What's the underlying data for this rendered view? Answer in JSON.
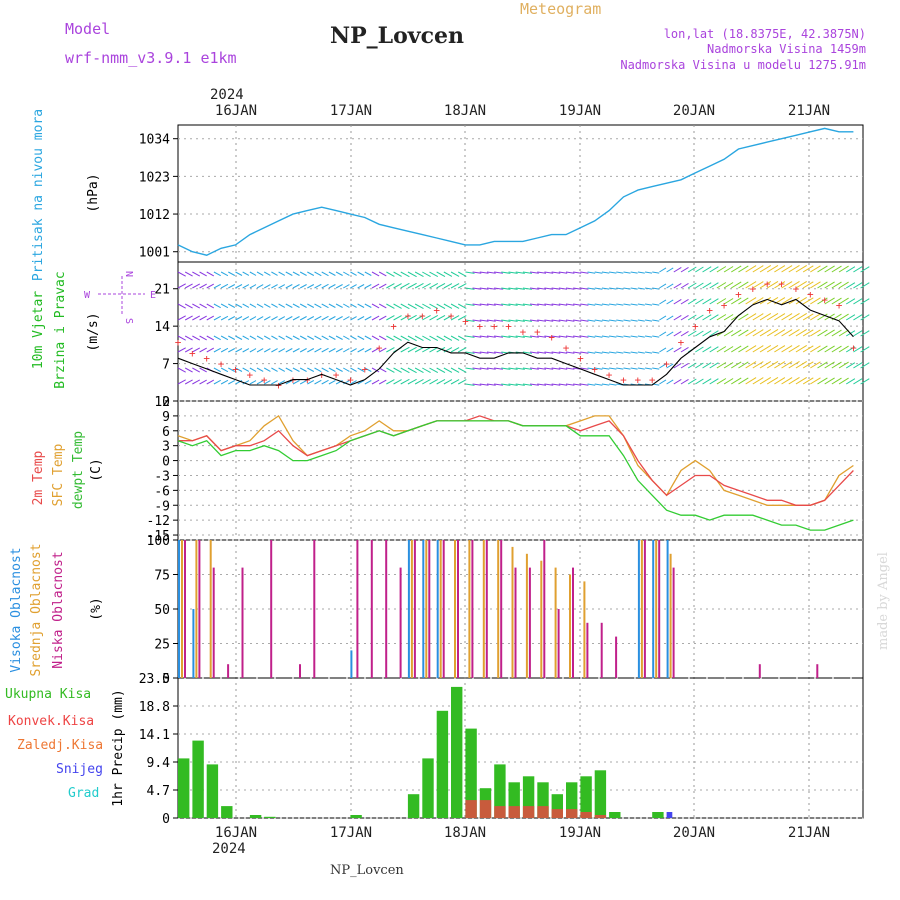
{
  "header": {
    "model_label": "Model",
    "model_name": "wrf-nmm_v3.9.1 e1km",
    "station_title": "NP_Lovcen",
    "meteogram_label": "Meteogram",
    "lonlat": "lon,lat (18.8375E, 42.3875N)",
    "altitude": "Nadmorska Visina 1459m",
    "model_altitude": "Nadmorska Visina u modelu 1275.91m",
    "year_top": "2024",
    "year_bottom": "2024",
    "footer_station": "NP_Lovcen",
    "watermark": "made by Angel"
  },
  "colors": {
    "pressure": "#2aa6e0",
    "wind_label": "#22bb22",
    "temp2m": "#e84a4a",
    "sfc_temp": "#e0a030",
    "dewpt": "#33cc33",
    "high_cloud": "#2a8fe0",
    "mid_cloud": "#e0a030",
    "low_cloud": "#c0208a",
    "precip_total": "#33bb22",
    "precip_conv": "#ee4444",
    "freezing": "#ee7733",
    "snow": "#4444ee",
    "hail": "#22cccc",
    "compass": "#aa44dd"
  },
  "chart_data": [
    {
      "type": "line",
      "id": "pressure",
      "ylabel_1": "Pritisak na nivou mora",
      "ylabel_2": "(hPa)",
      "x_categories": [
        "16JAN",
        "17JAN",
        "18JAN",
        "19JAN",
        "20JAN",
        "21JAN"
      ],
      "yticks": [
        1001,
        1012,
        1023,
        1034
      ],
      "ylim": [
        998,
        1038
      ],
      "x": [
        0,
        3,
        6,
        9,
        12,
        15,
        18,
        21,
        24,
        27,
        30,
        33,
        36,
        39,
        42,
        45,
        48,
        51,
        54,
        57,
        60,
        63,
        66,
        69,
        72,
        75,
        78,
        81,
        84,
        87,
        90,
        93,
        96,
        99,
        102,
        105,
        108,
        111,
        114,
        117,
        120,
        123,
        126,
        129,
        132,
        135,
        138,
        141
      ],
      "values": [
        1003,
        1001,
        1000,
        1002,
        1003,
        1006,
        1008,
        1010,
        1012,
        1013,
        1014,
        1013,
        1012,
        1011,
        1009,
        1008,
        1007,
        1006,
        1005,
        1004,
        1003,
        1003,
        1004,
        1004,
        1004,
        1005,
        1006,
        1006,
        1008,
        1010,
        1013,
        1017,
        1019,
        1020,
        1021,
        1022,
        1024,
        1026,
        1028,
        1031,
        1032,
        1033,
        1034,
        1035,
        1036,
        1037,
        1036,
        1036
      ],
      "grid": true
    },
    {
      "type": "line",
      "id": "wind",
      "ylabel_1": "10m Vjetar",
      "ylabel_2": "Brzina i Pravac",
      "ylabel_3": "(m/s)",
      "compass_labels": [
        "N",
        "S",
        "E",
        "W"
      ],
      "yticks": [
        0,
        7,
        14,
        21
      ],
      "ylim": [
        0,
        26
      ],
      "x": [
        0,
        3,
        6,
        9,
        12,
        15,
        18,
        21,
        24,
        27,
        30,
        33,
        36,
        39,
        42,
        45,
        48,
        51,
        54,
        57,
        60,
        63,
        66,
        69,
        72,
        75,
        78,
        81,
        84,
        87,
        90,
        93,
        96,
        99,
        102,
        105,
        108,
        111,
        114,
        117,
        120,
        123,
        126,
        129,
        132,
        135,
        138,
        141
      ],
      "series": [
        {
          "key": "speed",
          "values": [
            8,
            7,
            6,
            5,
            4,
            3,
            3,
            3,
            4,
            4,
            5,
            4,
            3,
            4,
            6,
            9,
            11,
            10,
            10,
            9,
            9,
            8,
            8,
            9,
            9,
            8,
            8,
            7,
            6,
            5,
            4,
            3,
            3,
            3,
            5,
            8,
            10,
            12,
            13,
            16,
            18,
            19,
            18,
            19,
            17,
            16,
            15,
            12
          ]
        },
        {
          "key": "gust",
          "values": [
            11,
            9,
            8,
            7,
            6,
            5,
            4,
            3,
            4,
            4,
            5,
            5,
            4,
            6,
            10,
            14,
            16,
            16,
            17,
            16,
            15,
            14,
            14,
            14,
            13,
            13,
            12,
            10,
            8,
            6,
            5,
            4,
            4,
            4,
            7,
            11,
            14,
            17,
            18,
            20,
            21,
            22,
            22,
            21,
            20,
            19,
            18,
            10
          ]
        }
      ],
      "grid": true
    },
    {
      "type": "line",
      "id": "temperature",
      "ylabel_1": "2m Temp",
      "ylabel_2": "SFC Temp",
      "ylabel_3": "dewpt Temp",
      "ylabel_4": "(C)",
      "yticks": [
        -15,
        -12,
        -9,
        -6,
        -3,
        0,
        3,
        6,
        9,
        12
      ],
      "ylim": [
        -16,
        12
      ],
      "x": [
        0,
        3,
        6,
        9,
        12,
        15,
        18,
        21,
        24,
        27,
        30,
        33,
        36,
        39,
        42,
        45,
        48,
        51,
        54,
        57,
        60,
        63,
        66,
        69,
        72,
        75,
        78,
        81,
        84,
        87,
        90,
        93,
        96,
        99,
        102,
        105,
        108,
        111,
        114,
        117,
        120,
        123,
        126,
        129,
        132,
        135,
        138,
        141
      ],
      "series": [
        {
          "key": "temp2m",
          "values": [
            4,
            4,
            5,
            2,
            3,
            3,
            4,
            6,
            3,
            1,
            2,
            3,
            4,
            5,
            6,
            5,
            6,
            7,
            8,
            8,
            8,
            9,
            8,
            8,
            7,
            7,
            7,
            7,
            6,
            7,
            8,
            5,
            0,
            -4,
            -7,
            -5,
            -3,
            -3,
            -5,
            -6,
            -7,
            -8,
            -8,
            -9,
            -9,
            -8,
            -5,
            -2
          ]
        },
        {
          "key": "sfc_temp",
          "values": [
            5,
            4,
            5,
            2,
            3,
            4,
            7,
            9,
            4,
            1,
            2,
            3,
            5,
            6,
            8,
            6,
            6,
            7,
            8,
            8,
            8,
            8,
            8,
            8,
            7,
            7,
            7,
            7,
            8,
            9,
            9,
            5,
            -1,
            -4,
            -7,
            -2,
            0,
            -2,
            -6,
            -7,
            -8,
            -9,
            -9,
            -9,
            -9,
            -8,
            -3,
            -1
          ]
        },
        {
          "key": "dewpt",
          "values": [
            4,
            3,
            4,
            1,
            2,
            2,
            3,
            2,
            0,
            0,
            1,
            2,
            4,
            5,
            6,
            5,
            6,
            7,
            8,
            8,
            8,
            8,
            8,
            8,
            7,
            7,
            7,
            7,
            5,
            5,
            5,
            1,
            -4,
            -7,
            -10,
            -11,
            -11,
            -12,
            -11,
            -11,
            -11,
            -12,
            -13,
            -13,
            -14,
            -14,
            -13,
            -12
          ]
        }
      ],
      "grid": true
    },
    {
      "type": "bar",
      "id": "clouds",
      "ylabel_1": "Visoka Oblacnost",
      "ylabel_2": "Srednja Oblacnost",
      "ylabel_3": "Niska Oblacnost",
      "ylabel_4": "(%)",
      "yticks": [
        0,
        25,
        50,
        75,
        100
      ],
      "ylim": [
        0,
        100
      ],
      "x": [
        0,
        3,
        6,
        9,
        12,
        15,
        18,
        21,
        24,
        27,
        30,
        33,
        36,
        39,
        42,
        45,
        48,
        51,
        54,
        57,
        60,
        63,
        66,
        69,
        72,
        75,
        78,
        81,
        84,
        87,
        90,
        93,
        96,
        99,
        102,
        105,
        108,
        111,
        114,
        117,
        120,
        123,
        126,
        129,
        132,
        135,
        138,
        141
      ],
      "series": [
        {
          "key": "high",
          "values": [
            100,
            50,
            0,
            0,
            0,
            0,
            0,
            0,
            0,
            0,
            0,
            0,
            20,
            0,
            0,
            0,
            100,
            100,
            100,
            0,
            0,
            0,
            0,
            0,
            0,
            0,
            0,
            0,
            0,
            0,
            0,
            0,
            100,
            100,
            100,
            0,
            0,
            0,
            0,
            0,
            0,
            0,
            0,
            0,
            0,
            0,
            0,
            0
          ]
        },
        {
          "key": "mid",
          "values": [
            100,
            100,
            100,
            0,
            0,
            0,
            0,
            0,
            0,
            0,
            0,
            0,
            0,
            0,
            0,
            0,
            100,
            100,
            100,
            100,
            100,
            100,
            100,
            95,
            90,
            85,
            80,
            75,
            70,
            0,
            0,
            0,
            100,
            100,
            90,
            0,
            0,
            0,
            0,
            0,
            0,
            0,
            0,
            0,
            0,
            0,
            0,
            0
          ]
        },
        {
          "key": "low",
          "values": [
            100,
            100,
            80,
            10,
            80,
            0,
            100,
            0,
            10,
            100,
            0,
            0,
            100,
            100,
            100,
            80,
            100,
            100,
            100,
            100,
            100,
            100,
            100,
            80,
            80,
            100,
            50,
            80,
            40,
            40,
            30,
            0,
            100,
            100,
            80,
            0,
            0,
            0,
            0,
            0,
            10,
            0,
            0,
            0,
            10,
            0,
            0,
            0
          ]
        }
      ],
      "grid": true
    },
    {
      "type": "bar",
      "id": "precip",
      "ylabel_1": "Ukupna Kisa",
      "ylabel_2": "Konvek.Kisa",
      "ylabel_3": "Zaledj.Kisa",
      "ylabel_4": "Snijeg",
      "ylabel_5": "Grad",
      "ylabel_6": "1hr Precip (mm)",
      "yticks": [
        0,
        4.7,
        9.4,
        14.1,
        18.8,
        23.5
      ],
      "ylim": [
        0,
        23.5
      ],
      "x_categories": [
        "16JAN",
        "17JAN",
        "18JAN",
        "19JAN",
        "20JAN",
        "21JAN"
      ],
      "x": [
        0,
        3,
        6,
        9,
        12,
        15,
        18,
        21,
        24,
        27,
        30,
        33,
        36,
        39,
        42,
        45,
        48,
        51,
        54,
        57,
        60,
        63,
        66,
        69,
        72,
        75,
        78,
        81,
        84,
        87,
        90,
        93,
        96,
        99,
        102,
        105,
        108,
        111,
        114,
        117,
        120,
        123,
        126,
        129,
        132,
        135,
        138,
        141
      ],
      "series": [
        {
          "key": "total",
          "values": [
            10,
            13,
            9,
            2,
            0,
            0.5,
            0.2,
            0,
            0,
            0,
            0,
            0,
            0.5,
            0,
            0,
            0,
            4,
            10,
            18,
            22,
            15,
            5,
            9,
            6,
            7,
            6,
            4,
            6,
            7,
            8,
            1,
            0,
            0,
            1,
            0,
            0,
            0,
            0,
            0,
            0,
            0,
            0,
            0,
            0,
            0,
            0,
            0,
            0
          ]
        },
        {
          "key": "convective",
          "values": [
            0,
            0,
            0,
            0,
            0,
            0,
            0,
            0,
            0,
            0,
            0,
            0,
            0,
            0,
            0,
            0,
            0,
            0,
            0,
            0,
            3,
            3,
            2,
            2,
            2,
            2,
            1.5,
            1.5,
            1,
            0.5,
            0,
            0,
            0,
            0,
            0,
            0,
            0,
            0,
            0,
            0,
            0,
            0,
            0,
            0,
            0,
            0,
            0,
            0
          ]
        },
        {
          "key": "snow",
          "values": [
            0,
            0,
            0,
            0,
            0,
            0,
            0,
            0,
            0,
            0,
            0,
            0,
            0,
            0,
            0,
            0,
            0,
            0,
            0,
            0,
            0,
            0,
            0,
            0,
            0,
            0,
            0,
            0,
            0,
            0,
            0,
            0,
            0,
            0,
            1,
            0,
            0,
            0,
            0,
            0,
            0,
            0,
            0,
            0,
            0,
            0,
            0,
            0
          ]
        }
      ],
      "grid": true
    }
  ]
}
